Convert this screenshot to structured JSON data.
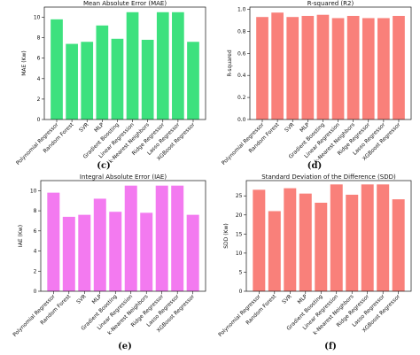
{
  "chart_data": [
    {
      "type": "bar",
      "panel_letter": "",
      "title": "Mean Absolute Error (MAE)",
      "ylabel": "MAE (Kw)",
      "categories": [
        "Polynomial Regressor",
        "Random Forest",
        "SVR",
        "MLP",
        "Gradient Boosting",
        "Linear Regression",
        "k-Nearest Neighbors",
        "Ridge Regressor",
        "Lasso Regressor",
        "XGBoost Regressor"
      ],
      "values": [
        9.8,
        7.4,
        7.6,
        9.2,
        7.9,
        10.5,
        7.8,
        10.5,
        10.5,
        7.6
      ],
      "ylim": [
        0,
        11
      ],
      "yticks": [
        0,
        2,
        4,
        6,
        8,
        10
      ],
      "ytick_labels": [
        "0",
        "2",
        "4",
        "6",
        "8",
        "10"
      ],
      "color": "#3de17e"
    },
    {
      "type": "bar",
      "panel_letter": "",
      "title": "R-squared (R2)",
      "ylabel": "R-squared",
      "categories": [
        "Polynomial Regressor",
        "Random Forest",
        "SVR",
        "MLP",
        "Gradient Boosting",
        "Linear Regression",
        "k-Nearest Neighbors",
        "Ridge Regressor",
        "Lasso Regressor",
        "XGBoost Regressor"
      ],
      "values": [
        0.93,
        0.97,
        0.93,
        0.94,
        0.95,
        0.92,
        0.94,
        0.92,
        0.92,
        0.94
      ],
      "ylim": [
        0,
        1.02
      ],
      "yticks": [
        0,
        0.2,
        0.4,
        0.6,
        0.8,
        1.0
      ],
      "ytick_labels": [
        "0.0",
        "0.2",
        "0.4",
        "0.6",
        "0.8",
        "1.0"
      ],
      "color": "#f9807a"
    },
    {
      "type": "bar",
      "panel_letter": "(e)",
      "title": "Integral Absolute Error (IAE)",
      "ylabel": "IAE (Kw)",
      "categories": [
        "Polynomial Regressor",
        "Random Forest",
        "SVR",
        "MLP",
        "Gradient Boosting",
        "Linear Regression",
        "k-Nearest Neighbors",
        "Ridge Regressor",
        "Lasso Regressor",
        "XGBoost Regressor"
      ],
      "values": [
        9.8,
        7.4,
        7.6,
        9.2,
        7.9,
        10.5,
        7.8,
        10.5,
        10.5,
        7.6
      ],
      "ylim": [
        0,
        11
      ],
      "yticks": [
        0,
        2,
        4,
        6,
        8,
        10
      ],
      "ytick_labels": [
        "0",
        "2",
        "4",
        "6",
        "8",
        "10"
      ],
      "color": "#f37af0"
    },
    {
      "type": "bar",
      "panel_letter": "(f)",
      "title": "Standard Deviation of the Difference (SDD)",
      "ylabel": "SDD (Kw)",
      "categories": [
        "Polynomial Regressor",
        "Random Forest",
        "SVR",
        "MLP",
        "Gradient Boosting",
        "Linear Regression",
        "k-Nearest Neighbors",
        "Ridge Regressor",
        "Lasso Regressor",
        "XGBoost Regressor"
      ],
      "values": [
        26.6,
        21.0,
        27.0,
        25.6,
        23.2,
        28.0,
        25.3,
        28.0,
        28.0,
        24.1
      ],
      "ylim": [
        0,
        29
      ],
      "yticks": [
        0,
        5,
        10,
        15,
        20,
        25
      ],
      "ytick_labels": [
        "0",
        "5",
        "10",
        "15",
        "20",
        "25"
      ],
      "color": "#f9807a"
    }
  ],
  "captions": [
    "(c)",
    "(d)"
  ]
}
